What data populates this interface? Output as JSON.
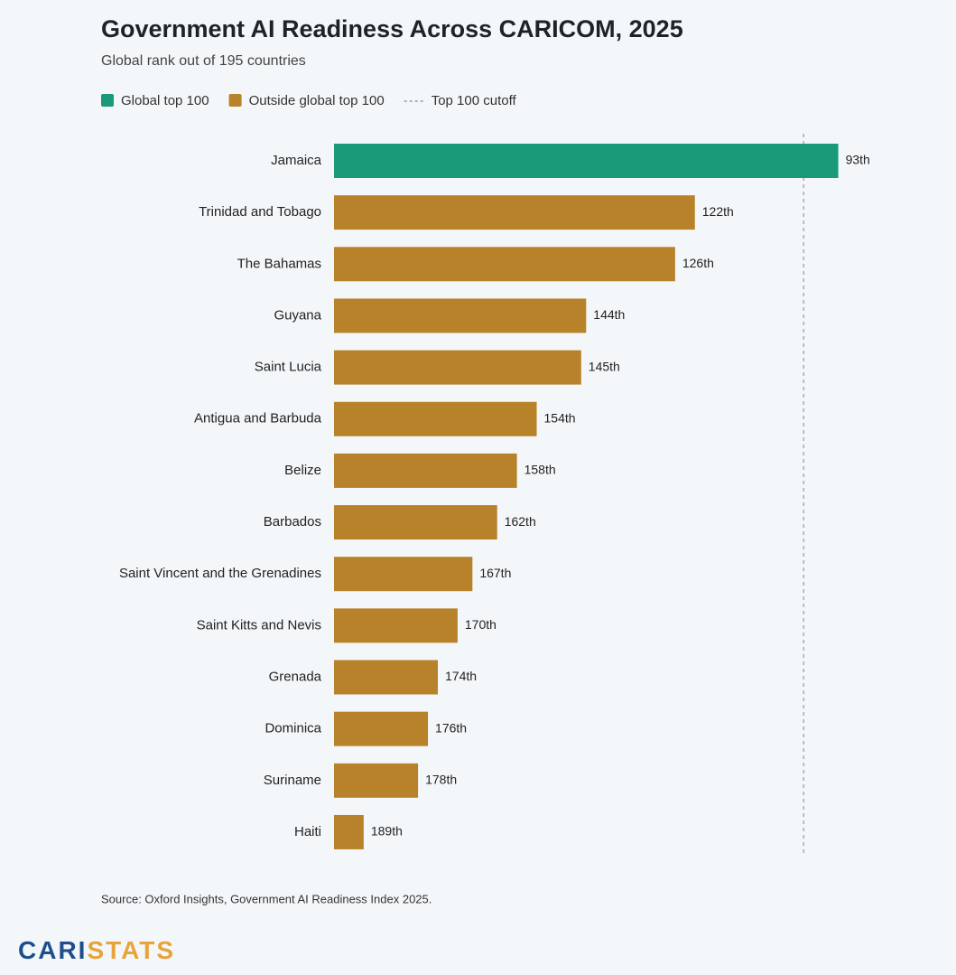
{
  "chart_data": {
    "type": "bar",
    "orientation": "horizontal",
    "title": "Government AI Readiness Across CARICOM, 2025",
    "subtitle": "Global rank out of 195 countries",
    "categories": [
      "Jamaica",
      "Trinidad and Tobago",
      "The Bahamas",
      "Guyana",
      "Saint Lucia",
      "Antigua and Barbuda",
      "Belize",
      "Barbados",
      "Saint Vincent and the Grenadines",
      "Saint Kitts and Nevis",
      "Grenada",
      "Dominica",
      "Suriname",
      "Haiti"
    ],
    "series": [
      {
        "name": "Global top 100",
        "color": "#1a9a78",
        "values": [
          93,
          null,
          null,
          null,
          null,
          null,
          null,
          null,
          null,
          null,
          null,
          null,
          null,
          null
        ],
        "value_labels": [
          "93th",
          null,
          null,
          null,
          null,
          null,
          null,
          null,
          null,
          null,
          null,
          null,
          null,
          null
        ]
      },
      {
        "name": "Outside global top 100",
        "color": "#b8822a",
        "values": [
          null,
          122,
          126,
          144,
          145,
          154,
          158,
          162,
          167,
          170,
          174,
          176,
          178,
          189
        ],
        "value_labels": [
          null,
          "122th",
          "126th",
          "144th",
          "145th",
          "154th",
          "158th",
          "162th",
          "167th",
          "170th",
          "174th",
          "176th",
          "178th",
          "189th"
        ]
      }
    ],
    "xlim": [
      195,
      90
    ],
    "reference_line": {
      "value": 100,
      "label": "Top 100 cutoff",
      "color": "#999999"
    },
    "source": "Source: Oxford Insights, Government AI Readiness Index 2025.",
    "brand": [
      {
        "text": "CARI",
        "color": "#1f4e8c"
      },
      {
        "text": "STATS",
        "color": "#e8a33a"
      }
    ]
  }
}
